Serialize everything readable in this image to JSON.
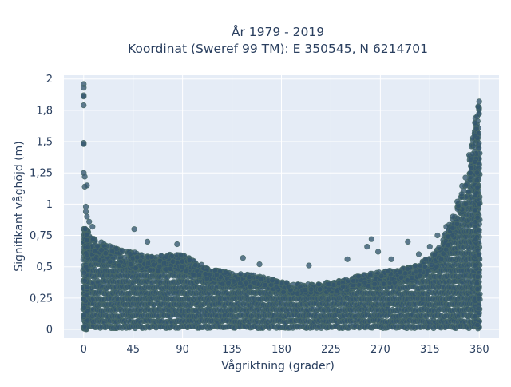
{
  "chart_data": {
    "type": "scatter",
    "title": [
      "År 1979 - 2019",
      "Koordinat (Sweref 99 TM): E 350545, N 6214701"
    ],
    "xlabel": "Vågriktning (grader)",
    "ylabel": "Signifikant våghöjd (m)",
    "xlim": [
      -18,
      378
    ],
    "ylim": [
      -0.07,
      2.03
    ],
    "x_ticks": [
      0,
      45,
      90,
      135,
      180,
      225,
      270,
      315,
      360
    ],
    "x_tick_labels": [
      "0",
      "45",
      "90",
      "135",
      "180",
      "225",
      "270",
      "315",
      "360"
    ],
    "y_ticks": [
      0,
      0.25,
      0.5,
      0.75,
      1,
      1.25,
      1.5,
      1.75,
      2
    ],
    "y_tick_labels": [
      "0",
      "0,25",
      "0,5",
      "0,75",
      "1",
      "1,25",
      "1,5",
      "1,8",
      "2"
    ],
    "grid": true,
    "colors": {
      "plot_bg": "#e5ecf6",
      "grid": "#ffffff",
      "marker": "#33566e",
      "marker_outline": "#4a6b66"
    },
    "upper_envelope": [
      [
        0,
        0.82
      ],
      [
        5,
        0.78
      ],
      [
        10,
        0.72
      ],
      [
        20,
        0.68
      ],
      [
        30,
        0.65
      ],
      [
        45,
        0.62
      ],
      [
        60,
        0.58
      ],
      [
        80,
        0.6
      ],
      [
        90,
        0.6
      ],
      [
        100,
        0.55
      ],
      [
        115,
        0.48
      ],
      [
        135,
        0.45
      ],
      [
        150,
        0.44
      ],
      [
        165,
        0.42
      ],
      [
        180,
        0.38
      ],
      [
        195,
        0.36
      ],
      [
        210,
        0.36
      ],
      [
        225,
        0.38
      ],
      [
        240,
        0.4
      ],
      [
        255,
        0.44
      ],
      [
        270,
        0.46
      ],
      [
        285,
        0.48
      ],
      [
        300,
        0.5
      ],
      [
        310,
        0.55
      ],
      [
        320,
        0.62
      ],
      [
        330,
        0.78
      ],
      [
        340,
        1.0
      ],
      [
        350,
        1.35
      ],
      [
        355,
        1.65
      ],
      [
        360,
        1.8
      ]
    ],
    "outliers": [
      [
        0,
        1.96
      ],
      [
        0,
        1.93
      ],
      [
        0,
        1.87
      ],
      [
        0,
        1.86
      ],
      [
        0,
        1.79
      ],
      [
        0,
        1.49
      ],
      [
        0,
        1.48
      ],
      [
        0,
        1.25
      ],
      [
        1,
        1.22
      ],
      [
        1,
        1.14
      ],
      [
        3,
        1.15
      ],
      [
        2,
        0.98
      ],
      [
        2,
        0.94
      ],
      [
        3,
        0.9
      ],
      [
        5,
        0.86
      ],
      [
        8,
        0.82
      ],
      [
        46,
        0.8
      ],
      [
        58,
        0.7
      ],
      [
        85,
        0.68
      ],
      [
        145,
        0.57
      ],
      [
        160,
        0.52
      ],
      [
        205,
        0.51
      ],
      [
        240,
        0.56
      ],
      [
        258,
        0.66
      ],
      [
        262,
        0.72
      ],
      [
        268,
        0.62
      ],
      [
        280,
        0.56
      ],
      [
        295,
        0.7
      ],
      [
        305,
        0.6
      ],
      [
        315,
        0.66
      ],
      [
        322,
        0.75
      ],
      [
        330,
        0.82
      ],
      [
        336,
        0.9
      ],
      [
        340,
        1.02
      ],
      [
        344,
        1.08
      ],
      [
        348,
        1.15
      ],
      [
        352,
        1.25
      ],
      [
        354,
        1.4
      ],
      [
        356,
        1.55
      ],
      [
        358,
        1.7
      ],
      [
        359,
        1.78
      ],
      [
        360,
        1.82
      ]
    ]
  }
}
